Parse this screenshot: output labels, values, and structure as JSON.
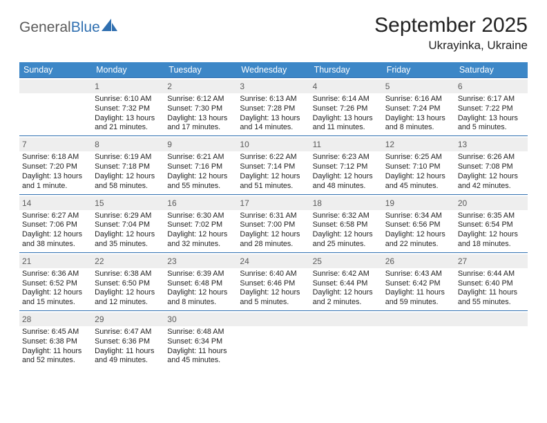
{
  "brand": {
    "part1": "General",
    "part2": "Blue"
  },
  "title": "September 2025",
  "location": "Ukrayinka, Ukraine",
  "colors": {
    "header_bg": "#3d87c7",
    "week_border": "#2f6fb0",
    "daynum_bg": "#eeeeee",
    "logo_gray": "#5a5a5a",
    "logo_blue": "#2f6fb0"
  },
  "weekdays": [
    "Sunday",
    "Monday",
    "Tuesday",
    "Wednesday",
    "Thursday",
    "Friday",
    "Saturday"
  ],
  "weeks": [
    [
      {
        "n": "",
        "empty": true
      },
      {
        "n": "1",
        "sunrise": "Sunrise: 6:10 AM",
        "sunset": "Sunset: 7:32 PM",
        "dl1": "Daylight: 13 hours",
        "dl2": "and 21 minutes."
      },
      {
        "n": "2",
        "sunrise": "Sunrise: 6:12 AM",
        "sunset": "Sunset: 7:30 PM",
        "dl1": "Daylight: 13 hours",
        "dl2": "and 17 minutes."
      },
      {
        "n": "3",
        "sunrise": "Sunrise: 6:13 AM",
        "sunset": "Sunset: 7:28 PM",
        "dl1": "Daylight: 13 hours",
        "dl2": "and 14 minutes."
      },
      {
        "n": "4",
        "sunrise": "Sunrise: 6:14 AM",
        "sunset": "Sunset: 7:26 PM",
        "dl1": "Daylight: 13 hours",
        "dl2": "and 11 minutes."
      },
      {
        "n": "5",
        "sunrise": "Sunrise: 6:16 AM",
        "sunset": "Sunset: 7:24 PM",
        "dl1": "Daylight: 13 hours",
        "dl2": "and 8 minutes."
      },
      {
        "n": "6",
        "sunrise": "Sunrise: 6:17 AM",
        "sunset": "Sunset: 7:22 PM",
        "dl1": "Daylight: 13 hours",
        "dl2": "and 5 minutes."
      }
    ],
    [
      {
        "n": "7",
        "sunrise": "Sunrise: 6:18 AM",
        "sunset": "Sunset: 7:20 PM",
        "dl1": "Daylight: 13 hours",
        "dl2": "and 1 minute."
      },
      {
        "n": "8",
        "sunrise": "Sunrise: 6:19 AM",
        "sunset": "Sunset: 7:18 PM",
        "dl1": "Daylight: 12 hours",
        "dl2": "and 58 minutes."
      },
      {
        "n": "9",
        "sunrise": "Sunrise: 6:21 AM",
        "sunset": "Sunset: 7:16 PM",
        "dl1": "Daylight: 12 hours",
        "dl2": "and 55 minutes."
      },
      {
        "n": "10",
        "sunrise": "Sunrise: 6:22 AM",
        "sunset": "Sunset: 7:14 PM",
        "dl1": "Daylight: 12 hours",
        "dl2": "and 51 minutes."
      },
      {
        "n": "11",
        "sunrise": "Sunrise: 6:23 AM",
        "sunset": "Sunset: 7:12 PM",
        "dl1": "Daylight: 12 hours",
        "dl2": "and 48 minutes."
      },
      {
        "n": "12",
        "sunrise": "Sunrise: 6:25 AM",
        "sunset": "Sunset: 7:10 PM",
        "dl1": "Daylight: 12 hours",
        "dl2": "and 45 minutes."
      },
      {
        "n": "13",
        "sunrise": "Sunrise: 6:26 AM",
        "sunset": "Sunset: 7:08 PM",
        "dl1": "Daylight: 12 hours",
        "dl2": "and 42 minutes."
      }
    ],
    [
      {
        "n": "14",
        "sunrise": "Sunrise: 6:27 AM",
        "sunset": "Sunset: 7:06 PM",
        "dl1": "Daylight: 12 hours",
        "dl2": "and 38 minutes."
      },
      {
        "n": "15",
        "sunrise": "Sunrise: 6:29 AM",
        "sunset": "Sunset: 7:04 PM",
        "dl1": "Daylight: 12 hours",
        "dl2": "and 35 minutes."
      },
      {
        "n": "16",
        "sunrise": "Sunrise: 6:30 AM",
        "sunset": "Sunset: 7:02 PM",
        "dl1": "Daylight: 12 hours",
        "dl2": "and 32 minutes."
      },
      {
        "n": "17",
        "sunrise": "Sunrise: 6:31 AM",
        "sunset": "Sunset: 7:00 PM",
        "dl1": "Daylight: 12 hours",
        "dl2": "and 28 minutes."
      },
      {
        "n": "18",
        "sunrise": "Sunrise: 6:32 AM",
        "sunset": "Sunset: 6:58 PM",
        "dl1": "Daylight: 12 hours",
        "dl2": "and 25 minutes."
      },
      {
        "n": "19",
        "sunrise": "Sunrise: 6:34 AM",
        "sunset": "Sunset: 6:56 PM",
        "dl1": "Daylight: 12 hours",
        "dl2": "and 22 minutes."
      },
      {
        "n": "20",
        "sunrise": "Sunrise: 6:35 AM",
        "sunset": "Sunset: 6:54 PM",
        "dl1": "Daylight: 12 hours",
        "dl2": "and 18 minutes."
      }
    ],
    [
      {
        "n": "21",
        "sunrise": "Sunrise: 6:36 AM",
        "sunset": "Sunset: 6:52 PM",
        "dl1": "Daylight: 12 hours",
        "dl2": "and 15 minutes."
      },
      {
        "n": "22",
        "sunrise": "Sunrise: 6:38 AM",
        "sunset": "Sunset: 6:50 PM",
        "dl1": "Daylight: 12 hours",
        "dl2": "and 12 minutes."
      },
      {
        "n": "23",
        "sunrise": "Sunrise: 6:39 AM",
        "sunset": "Sunset: 6:48 PM",
        "dl1": "Daylight: 12 hours",
        "dl2": "and 8 minutes."
      },
      {
        "n": "24",
        "sunrise": "Sunrise: 6:40 AM",
        "sunset": "Sunset: 6:46 PM",
        "dl1": "Daylight: 12 hours",
        "dl2": "and 5 minutes."
      },
      {
        "n": "25",
        "sunrise": "Sunrise: 6:42 AM",
        "sunset": "Sunset: 6:44 PM",
        "dl1": "Daylight: 12 hours",
        "dl2": "and 2 minutes."
      },
      {
        "n": "26",
        "sunrise": "Sunrise: 6:43 AM",
        "sunset": "Sunset: 6:42 PM",
        "dl1": "Daylight: 11 hours",
        "dl2": "and 59 minutes."
      },
      {
        "n": "27",
        "sunrise": "Sunrise: 6:44 AM",
        "sunset": "Sunset: 6:40 PM",
        "dl1": "Daylight: 11 hours",
        "dl2": "and 55 minutes."
      }
    ],
    [
      {
        "n": "28",
        "sunrise": "Sunrise: 6:45 AM",
        "sunset": "Sunset: 6:38 PM",
        "dl1": "Daylight: 11 hours",
        "dl2": "and 52 minutes."
      },
      {
        "n": "29",
        "sunrise": "Sunrise: 6:47 AM",
        "sunset": "Sunset: 6:36 PM",
        "dl1": "Daylight: 11 hours",
        "dl2": "and 49 minutes."
      },
      {
        "n": "30",
        "sunrise": "Sunrise: 6:48 AM",
        "sunset": "Sunset: 6:34 PM",
        "dl1": "Daylight: 11 hours",
        "dl2": "and 45 minutes."
      },
      {
        "n": "",
        "empty": true
      },
      {
        "n": "",
        "empty": true
      },
      {
        "n": "",
        "empty": true
      },
      {
        "n": "",
        "empty": true
      }
    ]
  ]
}
